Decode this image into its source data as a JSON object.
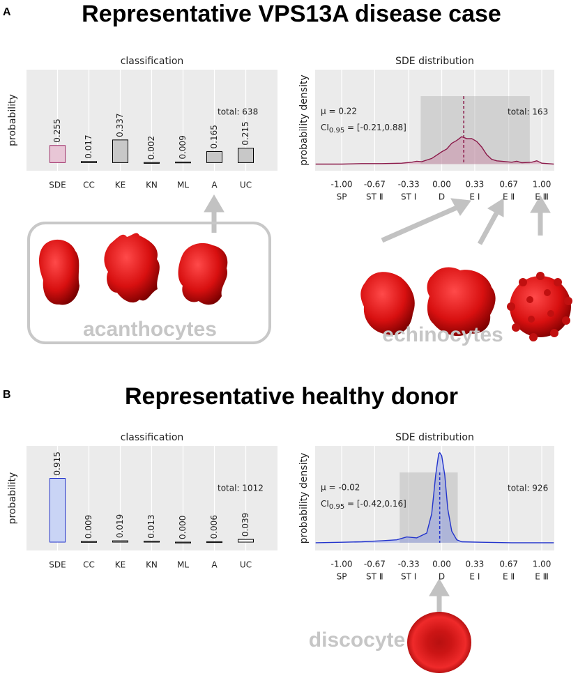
{
  "panels": [
    {
      "label": "A",
      "title": "Representative VPS13A disease case",
      "cell_labels": [
        "acanthocytes",
        "echinocytes"
      ]
    },
    {
      "label": "B",
      "title": "Representative healthy donor",
      "cell_labels": [
        "discocyte"
      ]
    }
  ],
  "chart_data": [
    {
      "type": "bar",
      "title": "classification",
      "ylabel": "probability",
      "annotation": "total: 638",
      "categories": [
        "SDE",
        "CC",
        "KE",
        "KN",
        "ML",
        "A",
        "UC"
      ],
      "values": [
        0.255,
        0.017,
        0.337,
        0.002,
        0.009,
        0.165,
        0.215
      ],
      "value_labels": [
        "0.255",
        "0.017",
        "0.337",
        "0.002",
        "0.009",
        "0.165",
        "0.215"
      ],
      "colors": [
        "#e8c6d6",
        "#c8c8c8",
        "#c8c8c8",
        "#c8c8c8",
        "#c8c8c8",
        "#c8c8c8",
        "#c8c8c8"
      ],
      "edge_colors": [
        "#a0306a",
        "#000000",
        "#000000",
        "#000000",
        "#000000",
        "#000000",
        "#000000"
      ],
      "ylim": [
        -0.12,
        1.38
      ],
      "grid": true
    },
    {
      "type": "line",
      "title": "SDE distribution",
      "ylabel": "probability density",
      "annotation": "total: 163",
      "mean": 0.22,
      "mean_label": "μ = 0.22",
      "ci": [
        -0.21,
        0.88
      ],
      "ci_label": [
        "CI",
        "0.95",
        " = [-0.21,0.88]"
      ],
      "x": [
        -1.26,
        -1.0,
        -0.8,
        -0.6,
        -0.4,
        -0.3,
        -0.25,
        -0.2,
        -0.1,
        0.0,
        0.05,
        0.1,
        0.15,
        0.2,
        0.25,
        0.3,
        0.35,
        0.4,
        0.45,
        0.5,
        0.55,
        0.6,
        0.7,
        0.75,
        0.8,
        0.9,
        0.95,
        1.0,
        1.12
      ],
      "values": [
        0.0,
        0.0,
        0.005,
        0.005,
        0.01,
        0.02,
        0.03,
        0.025,
        0.06,
        0.13,
        0.16,
        0.22,
        0.25,
        0.29,
        0.27,
        0.27,
        0.24,
        0.18,
        0.1,
        0.05,
        0.035,
        0.03,
        0.02,
        0.03,
        0.015,
        0.02,
        0.035,
        0.01,
        0.0
      ],
      "color": "#8b1a4a",
      "fill": "rgba(200,110,150,0.35)",
      "xlim": [
        -1.265,
        1.125
      ],
      "ylim": [
        -0.07,
        1
      ],
      "xticks": [
        {
          "value": -1,
          "label": "-1.00"
        },
        -0.67,
        -0.33,
        {
          "value": 0,
          "label": "0.00"
        },
        0.33,
        0.67,
        {
          "value": 1,
          "label": "1.00"
        }
      ],
      "xtick_names": [
        "SP",
        "ST Ⅱ",
        "ST Ⅰ",
        "D",
        "E Ⅰ",
        "E Ⅱ",
        "E Ⅲ"
      ],
      "grid": true
    },
    {
      "type": "bar",
      "title": "classification",
      "ylabel": "probability",
      "annotation": "total: 1012",
      "categories": [
        "SDE",
        "CC",
        "KE",
        "KN",
        "ML",
        "A",
        "UC"
      ],
      "values": [
        0.915,
        0.009,
        0.019,
        0.013,
        0.0,
        0.006,
        0.039
      ],
      "value_labels": [
        "0.915",
        "0.009",
        "0.019",
        "0.013",
        "0.000",
        "0.006",
        "0.039"
      ],
      "colors": [
        "#c9d4f5",
        "#c8c8c8",
        "#c8c8c8",
        "#c8c8c8",
        "#c8c8c8",
        "#c8c8c8",
        "#ffffff"
      ],
      "edge_colors": [
        "#2233cc",
        "#000000",
        "#000000",
        "#000000",
        "#000000",
        "#000000",
        "#000000"
      ],
      "ylim": [
        -0.12,
        1.38
      ],
      "grid": true
    },
    {
      "type": "line",
      "title": "SDE distribution",
      "ylabel": "probability density",
      "annotation": "total: 926",
      "mean": -0.02,
      "mean_label": "μ = -0.02",
      "ci": [
        -0.42,
        0.16
      ],
      "ci_label": [
        "CI",
        "0.95",
        " = [-0.42,0.16]"
      ],
      "x": [
        -1.26,
        -1.0,
        -0.8,
        -0.6,
        -0.45,
        -0.35,
        -0.25,
        -0.15,
        -0.1,
        -0.06,
        -0.03,
        -0.02,
        0.0,
        0.03,
        0.06,
        0.1,
        0.15,
        0.2,
        0.4,
        0.7,
        1.0,
        1.12
      ],
      "values": [
        0.0,
        0.005,
        0.01,
        0.02,
        0.03,
        0.06,
        0.05,
        0.1,
        0.3,
        0.7,
        0.92,
        0.93,
        0.9,
        0.7,
        0.35,
        0.12,
        0.03,
        0.01,
        0.005,
        0.0,
        0.0,
        0.0
      ],
      "color": "#2233cc",
      "fill": "rgba(110,130,230,0.35)",
      "xlim": [
        -1.265,
        1.125
      ],
      "ylim": [
        -0.08,
        1
      ],
      "xticks": [
        {
          "value": -1,
          "label": "-1.00"
        },
        -0.67,
        -0.33,
        {
          "value": 0,
          "label": "0.00"
        },
        0.33,
        0.67,
        {
          "value": 1,
          "label": "1.00"
        }
      ],
      "xtick_names": [
        "SP",
        "ST Ⅱ",
        "ST Ⅰ",
        "D",
        "E Ⅰ",
        "E Ⅱ",
        "E Ⅲ"
      ],
      "grid": true
    }
  ]
}
